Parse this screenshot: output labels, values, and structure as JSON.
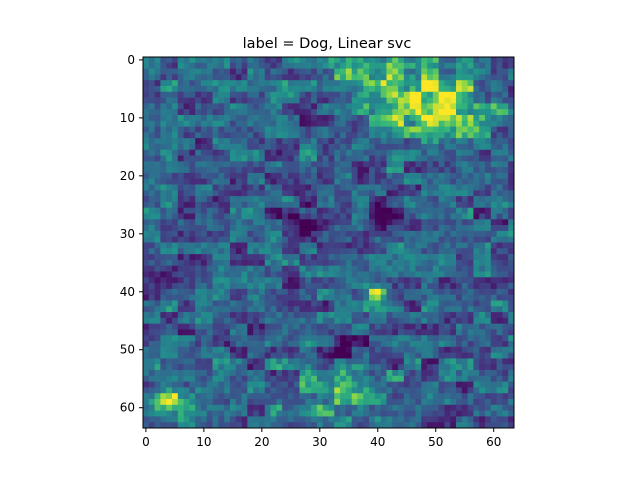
{
  "chart_data": {
    "type": "heatmap",
    "title": "label = Dog, Linear svc",
    "xlabel": "",
    "ylabel": "",
    "xlim": [
      -0.5,
      63.5
    ],
    "ylim": [
      63.5,
      -0.5
    ],
    "x_ticks": [
      0,
      10,
      20,
      30,
      40,
      50,
      60
    ],
    "y_ticks": [
      0,
      10,
      20,
      30,
      40,
      50,
      60
    ],
    "x_tick_labels": [
      "0",
      "10",
      "20",
      "30",
      "40",
      "50",
      "60"
    ],
    "y_tick_labels": [
      "0",
      "10",
      "20",
      "30",
      "40",
      "50",
      "60"
    ],
    "grid": false,
    "colormap": "viridis",
    "image_size": [
      64,
      64
    ],
    "colors": {
      "low": "#440154",
      "mid": "#31688e",
      "high_mid": "#35b779",
      "high": "#fde725"
    }
  }
}
